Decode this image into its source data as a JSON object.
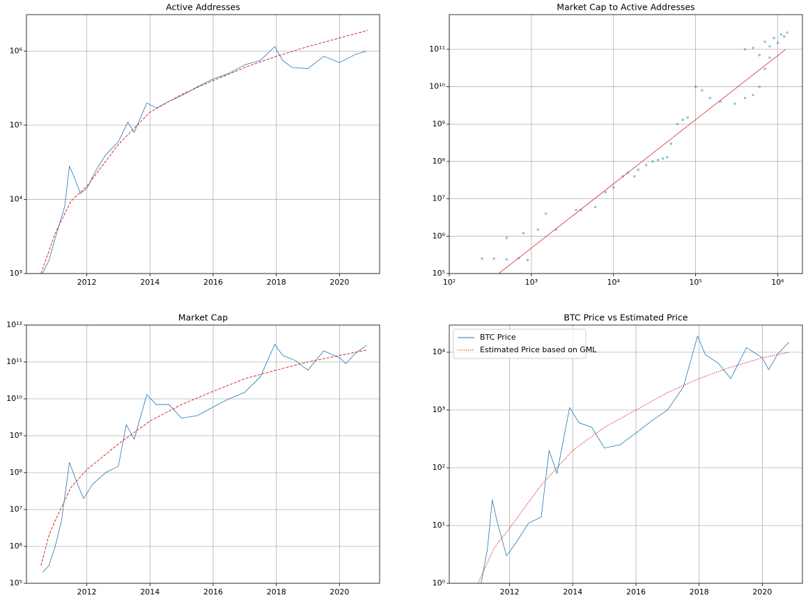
{
  "chart_data": [
    {
      "type": "line",
      "title": "Active Addresses",
      "xlim": [
        2010.09,
        2021.27
      ],
      "xticks": [
        2012,
        2014,
        2016,
        2018,
        2020
      ],
      "ylim": [
        1000,
        3100000
      ],
      "yscale": "log",
      "yticks": [
        {
          "value": 1000,
          "label": "10³"
        },
        {
          "value": 10000,
          "label": "10⁴"
        },
        {
          "value": 100000,
          "label": "10⁵"
        },
        {
          "value": 1000000,
          "label": "10⁶"
        }
      ],
      "grid": true,
      "series": [
        {
          "color": "#1f77b4",
          "linestyle": "solid",
          "x": [
            2010.6,
            2010.8,
            2011.0,
            2011.3,
            2011.45,
            2011.6,
            2011.8,
            2012.0,
            2012.3,
            2012.6,
            2013.0,
            2013.3,
            2013.5,
            2013.9,
            2014.2,
            2014.6,
            2015.0,
            2015.5,
            2016.0,
            2016.5,
            2017.0,
            2017.5,
            2017.95,
            2018.2,
            2018.5,
            2019.0,
            2019.5,
            2020.0,
            2020.5,
            2020.85
          ],
          "values": [
            1000,
            1500,
            3000,
            8000,
            28000,
            20000,
            12000,
            14000,
            25000,
            40000,
            60000,
            110000,
            80000,
            200000,
            170000,
            210000,
            250000,
            330000,
            420000,
            500000,
            650000,
            750000,
            1150000,
            750000,
            600000,
            580000,
            850000,
            700000,
            900000,
            1000000
          ]
        },
        {
          "color": "#d62728",
          "linestyle": "dashed",
          "x": [
            2010.55,
            2011.0,
            2011.5,
            2012.0,
            2013.0,
            2014.0,
            2015.0,
            2016.0,
            2017.0,
            2018.0,
            2019.0,
            2020.0,
            2020.9
          ],
          "values": [
            1000,
            3500,
            9500,
            15000,
            55000,
            150000,
            260000,
            400000,
            600000,
            850000,
            1150000,
            1500000,
            1900000
          ]
        }
      ]
    },
    {
      "type": "scatter",
      "title": "Market Cap to Active Addresses",
      "xlim": [
        100,
        2000000
      ],
      "xscale": "log",
      "xticks": [
        {
          "value": 100,
          "label": "10²"
        },
        {
          "value": 1000,
          "label": "10³"
        },
        {
          "value": 10000,
          "label": "10⁴"
        },
        {
          "value": 100000,
          "label": "10⁵"
        },
        {
          "value": 1000000,
          "label": "10⁶"
        }
      ],
      "ylim": [
        100000,
        850000000000
      ],
      "yscale": "log",
      "yticks": [
        {
          "value": 100000,
          "label": "10⁵"
        },
        {
          "value": 1000000,
          "label": "10⁶"
        },
        {
          "value": 10000000,
          "label": "10⁷"
        },
        {
          "value": 100000000,
          "label": "10⁸"
        },
        {
          "value": 1000000000,
          "label": "10⁹"
        },
        {
          "value": 10000000000,
          "label": "10¹⁰"
        },
        {
          "value": 100000000000,
          "label": "10¹¹"
        }
      ],
      "grid": true,
      "series": [
        {
          "color": "#1f77b4",
          "mode": "points",
          "x": [
            250,
            350,
            500,
            700,
            900,
            500,
            800,
            1200,
            1500,
            2000,
            3500,
            4000,
            6000,
            8000,
            10000,
            13000,
            15000,
            18000,
            20000,
            25000,
            30000,
            35000,
            40000,
            45000,
            50000,
            60000,
            70000,
            80000,
            100000,
            120000,
            150000,
            200000,
            300000,
            400000,
            500000,
            600000,
            700000,
            800000,
            500000,
            700000,
            900000,
            1100000,
            1200000,
            600000,
            400000,
            1000000,
            1300000,
            800000
          ],
          "values": [
            250000,
            250000,
            240000,
            260000,
            230000,
            900000,
            1200000,
            1500000,
            4000000,
            1500000,
            5000000,
            5000000,
            6000000,
            15000000,
            20000000,
            40000000,
            50000000,
            40000000,
            60000000,
            80000000,
            100000000,
            110000000,
            120000000,
            130000000,
            300000000,
            1000000000,
            1300000000,
            1500000000,
            10000000000,
            8000000000,
            5000000000,
            4000000000,
            3500000000,
            5000000000,
            6000000000,
            10000000000,
            30000000000,
            60000000000,
            110000000000,
            160000000000,
            200000000000,
            250000000000,
            220000000000,
            70000000000,
            100000000000,
            150000000000,
            280000000000,
            120000000000
          ]
        },
        {
          "color": "#d62728",
          "linestyle": "solid",
          "x": [
            400,
            1250000
          ],
          "values": [
            100000,
            100000000000
          ]
        }
      ]
    },
    {
      "type": "line",
      "title": "Market Cap",
      "xlim": [
        2010.09,
        2021.27
      ],
      "xticks": [
        2012,
        2014,
        2016,
        2018,
        2020
      ],
      "ylim": [
        100000,
        1000000000000
      ],
      "yscale": "log",
      "yticks": [
        {
          "value": 100000,
          "label": "10⁵"
        },
        {
          "value": 1000000,
          "label": "10⁶"
        },
        {
          "value": 10000000,
          "label": "10⁷"
        },
        {
          "value": 100000000,
          "label": "10⁸"
        },
        {
          "value": 1000000000,
          "label": "10⁹"
        },
        {
          "value": 10000000000,
          "label": "10¹⁰"
        },
        {
          "value": 100000000000,
          "label": "10¹¹"
        },
        {
          "value": 1000000000000,
          "label": "10¹²"
        }
      ],
      "grid": true,
      "series": [
        {
          "color": "#1f77b4",
          "linestyle": "solid",
          "x": [
            2010.6,
            2010.8,
            2011.0,
            2011.2,
            2011.45,
            2011.7,
            2011.9,
            2012.2,
            2012.6,
            2013.0,
            2013.25,
            2013.5,
            2013.9,
            2014.2,
            2014.6,
            2015.0,
            2015.5,
            2016.0,
            2016.5,
            2017.0,
            2017.5,
            2017.95,
            2018.2,
            2018.6,
            2019.0,
            2019.5,
            2020.0,
            2020.2,
            2020.5,
            2020.85
          ],
          "values": [
            200000,
            300000,
            1000000,
            5000000,
            190000000,
            50000000,
            20000000,
            50000000,
            100000000,
            150000000,
            2000000000,
            800000000,
            13000000000,
            7000000000,
            7000000000,
            3000000000,
            3500000000,
            6000000000,
            10000000000,
            15000000000,
            40000000000,
            300000000000,
            150000000000,
            110000000000,
            60000000000,
            200000000000,
            130000000000,
            90000000000,
            170000000000,
            280000000000
          ]
        },
        {
          "color": "#d62728",
          "linestyle": "dashed",
          "x": [
            2010.55,
            2010.8,
            2011.0,
            2011.5,
            2012.0,
            2013.0,
            2014.0,
            2015.0,
            2016.0,
            2017.0,
            2018.0,
            2019.0,
            2020.0,
            2020.85
          ],
          "values": [
            300000,
            2000000,
            5000000,
            40000000,
            120000000,
            600000000,
            2500000000,
            7000000000,
            16000000000,
            35000000000,
            60000000000,
            100000000000,
            150000000000,
            210000000000
          ]
        }
      ]
    },
    {
      "type": "line",
      "title": "BTC Price vs Estimated Price",
      "xlim": [
        2010.09,
        2021.27
      ],
      "xticks": [
        2012,
        2014,
        2016,
        2018,
        2020
      ],
      "ylim": [
        1,
        29500
      ],
      "yscale": "log",
      "yticks": [
        {
          "value": 1,
          "label": "10⁰"
        },
        {
          "value": 10,
          "label": "10¹"
        },
        {
          "value": 100,
          "label": "10²"
        },
        {
          "value": 1000,
          "label": "10³"
        },
        {
          "value": 10000,
          "label": "10⁴"
        }
      ],
      "grid": true,
      "legend": "upper left",
      "series": [
        {
          "name": "BTC Price",
          "color": "#1f77b4",
          "linestyle": "solid",
          "x": [
            2011.1,
            2011.3,
            2011.45,
            2011.6,
            2011.9,
            2012.2,
            2012.6,
            2013.0,
            2013.25,
            2013.5,
            2013.9,
            2014.2,
            2014.6,
            2015.0,
            2015.5,
            2016.0,
            2016.5,
            2017.0,
            2017.5,
            2017.95,
            2018.2,
            2018.6,
            2019.0,
            2019.5,
            2020.0,
            2020.2,
            2020.5,
            2020.85
          ],
          "values": [
            1,
            4,
            28,
            12,
            3,
            5,
            11,
            14,
            200,
            80,
            1100,
            600,
            500,
            220,
            250,
            400,
            650,
            1000,
            2500,
            19000,
            9000,
            6500,
            3500,
            12000,
            8000,
            5000,
            9500,
            15000
          ]
        },
        {
          "name": "Estimated Price based on GML",
          "color": "#d62728",
          "linestyle": "dotted",
          "x": [
            2011.0,
            2011.5,
            2012.0,
            2013.0,
            2014.0,
            2015.0,
            2016.0,
            2017.0,
            2018.0,
            2019.0,
            2020.0,
            2020.85
          ],
          "values": [
            1,
            4,
            9,
            50,
            200,
            500,
            1000,
            2000,
            3500,
            5500,
            8000,
            10000
          ]
        }
      ]
    }
  ]
}
